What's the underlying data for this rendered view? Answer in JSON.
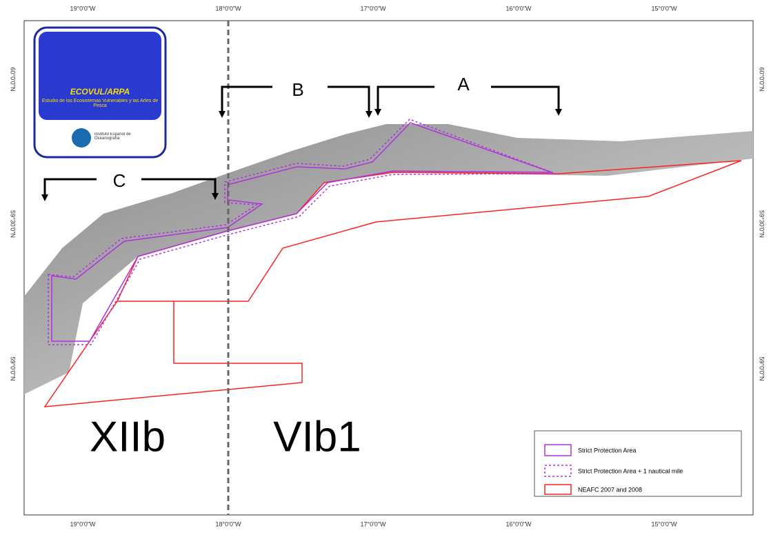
{
  "map": {
    "lon_labels": [
      "19°0'0\"W",
      "18°0'0\"W",
      "17°0'0\"W",
      "16°0'0\"W",
      "15°0'0\"W"
    ],
    "lat_labels": [
      "60°0'0\"N",
      "59°30'0\"N",
      "59°0'0\"N"
    ],
    "sections": [
      "A",
      "B",
      "C"
    ],
    "areas": [
      "XIIb",
      "VIb1"
    ],
    "logo": {
      "title": "ECOVUL/ARPA",
      "subtitle": "Estudio de los Ecosistemas Vulnerables y las Artes de Pesca",
      "institute": "Instituto Español de Oceanografía"
    },
    "legend": [
      "Strict Protection Area",
      "Strict Protection Area + 1 nautical mile",
      "NEAFC 2007 and 2008"
    ]
  }
}
